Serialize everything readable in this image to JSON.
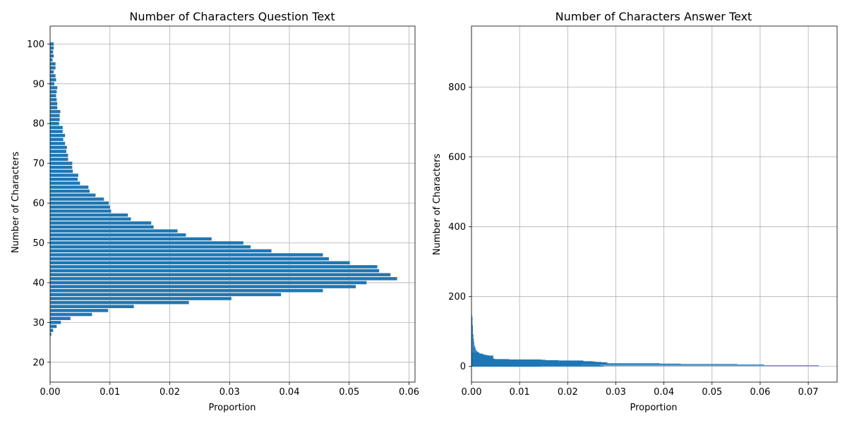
{
  "chart_data": [
    {
      "type": "bar",
      "orientation": "horizontal",
      "title": "Number of Characters Question Text",
      "xlabel": "Proportion",
      "ylabel": "Number of Characters",
      "xlim": [
        0,
        0.061
      ],
      "ylim": [
        15,
        104.5
      ],
      "grid": true,
      "bar_color": "#1f77b4",
      "xticks": [
        "0.00",
        "0.01",
        "0.02",
        "0.03",
        "0.04",
        "0.05",
        "0.06"
      ],
      "xtick_values": [
        0,
        0.01,
        0.02,
        0.03,
        0.04,
        0.05,
        0.06
      ],
      "yticks": [
        "20",
        "30",
        "40",
        "50",
        "60",
        "70",
        "80",
        "90",
        "100"
      ],
      "ytick_values": [
        20,
        30,
        40,
        50,
        60,
        70,
        80,
        90,
        100
      ],
      "y": [
        27,
        28,
        29,
        30,
        31,
        32,
        33,
        34,
        35,
        36,
        37,
        38,
        39,
        40,
        41,
        42,
        43,
        44,
        45,
        46,
        47,
        48,
        49,
        50,
        51,
        52,
        53,
        54,
        55,
        56,
        57,
        58,
        59,
        60,
        61,
        62,
        63,
        64,
        65,
        66,
        67,
        68,
        69,
        70,
        71,
        72,
        73,
        74,
        75,
        76,
        77,
        78,
        79,
        80,
        81,
        82,
        83,
        84,
        85,
        86,
        87,
        88,
        89,
        90,
        91,
        92,
        93,
        94,
        95,
        96,
        97,
        98,
        99,
        100
      ],
      "values": [
        0.0002,
        0.0005,
        0.0011,
        0.0018,
        0.0034,
        0.007,
        0.0097,
        0.014,
        0.0232,
        0.0303,
        0.0386,
        0.0456,
        0.0511,
        0.0529,
        0.058,
        0.0569,
        0.055,
        0.0547,
        0.0501,
        0.0466,
        0.0456,
        0.037,
        0.0335,
        0.0323,
        0.027,
        0.0227,
        0.0213,
        0.0173,
        0.0169,
        0.0135,
        0.013,
        0.0102,
        0.01,
        0.0098,
        0.009,
        0.0076,
        0.0066,
        0.0064,
        0.005,
        0.0046,
        0.0047,
        0.0038,
        0.0037,
        0.0037,
        0.003,
        0.003,
        0.0027,
        0.0028,
        0.0025,
        0.0022,
        0.0025,
        0.0021,
        0.0021,
        0.0015,
        0.0016,
        0.0016,
        0.0017,
        0.0012,
        0.0012,
        0.0011,
        0.001,
        0.0011,
        0.0012,
        0.0007,
        0.001,
        0.0009,
        0.0006,
        0.0009,
        0.0009,
        0.0004,
        0.0006,
        0.0005,
        0.0006,
        0.0006
      ]
    },
    {
      "type": "bar",
      "orientation": "horizontal",
      "title": "Number of Characters Answer Text",
      "xlabel": "Proportion",
      "ylabel": "Number of Characters",
      "xlim": [
        0,
        0.076
      ],
      "ylim": [
        -45,
        975
      ],
      "grid": true,
      "bar_color": "#1f77b4",
      "xticks": [
        "0.00",
        "0.01",
        "0.02",
        "0.03",
        "0.04",
        "0.05",
        "0.06",
        "0.07"
      ],
      "xtick_values": [
        0,
        0.01,
        0.02,
        0.03,
        0.04,
        0.05,
        0.06,
        0.07
      ],
      "yticks": [
        "0",
        "200",
        "400",
        "600",
        "800"
      ],
      "ytick_values": [
        0,
        200,
        400,
        600,
        800
      ],
      "y": [
        0,
        1,
        2,
        3,
        4,
        5,
        6,
        7,
        8,
        9,
        10,
        11,
        12,
        13,
        14,
        15,
        16,
        17,
        18,
        19,
        20,
        21,
        22,
        23,
        24,
        25,
        26,
        27,
        28,
        29,
        30,
        31,
        32,
        33,
        34,
        35,
        36,
        37,
        38,
        39,
        40,
        42,
        44,
        46,
        48,
        50,
        52,
        55,
        58,
        61,
        64,
        67,
        70,
        74,
        78,
        82,
        86,
        90,
        95,
        100,
        105,
        110,
        115,
        120,
        125,
        130,
        135,
        140,
        145,
        150
      ],
      "values": [
        0.0275,
        0.0145,
        0.0722,
        0.0268,
        0.0228,
        0.0608,
        0.0552,
        0.0435,
        0.0391,
        0.0281,
        0.0283,
        0.0281,
        0.027,
        0.0258,
        0.0252,
        0.0233,
        0.0232,
        0.0181,
        0.0154,
        0.0145,
        0.0078,
        0.0049,
        0.0046,
        0.0045,
        0.0045,
        0.0045,
        0.0045,
        0.0045,
        0.0045,
        0.0045,
        0.0046,
        0.0036,
        0.0032,
        0.0028,
        0.0025,
        0.0024,
        0.0022,
        0.0017,
        0.0016,
        0.0016,
        0.0015,
        0.0013,
        0.0011,
        0.001,
        0.0009,
        0.0009,
        0.0008,
        0.0008,
        0.0007,
        0.0006,
        0.0006,
        0.0006,
        0.0005,
        0.0005,
        0.0005,
        0.0004,
        0.0004,
        0.0004,
        0.0003,
        0.0003,
        0.0003,
        0.0003,
        0.0003,
        0.0002,
        0.0002,
        0.0002,
        0.0002,
        0.0002,
        0.0001,
        0.0001
      ]
    }
  ]
}
